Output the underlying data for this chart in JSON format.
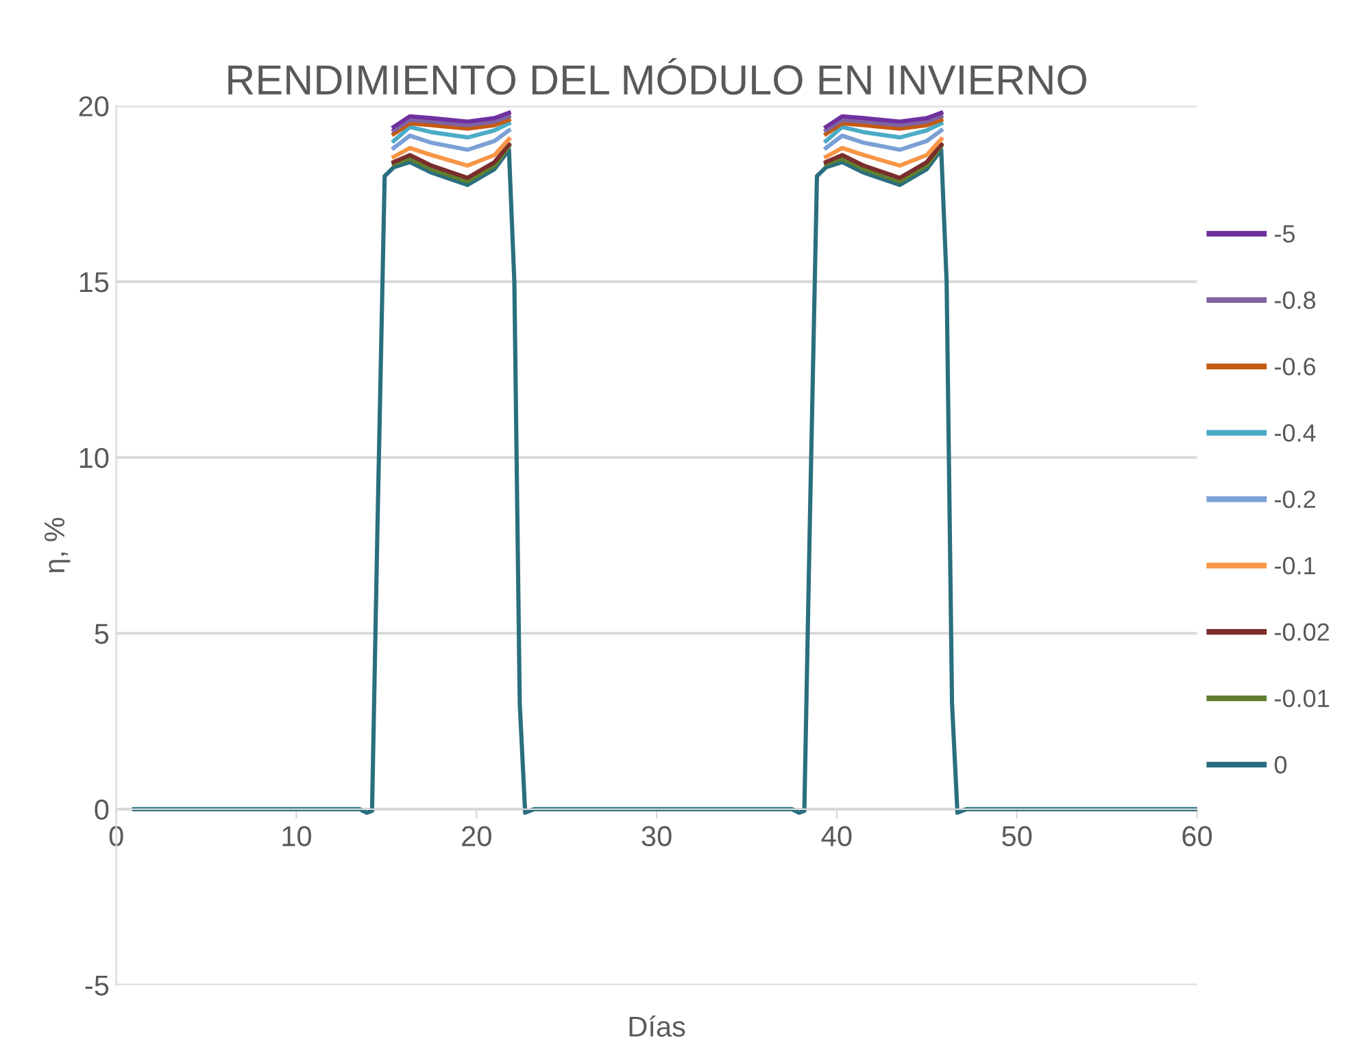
{
  "chart_data": {
    "type": "line",
    "title": "RENDIMIENTO DEL MÓDULO EN INVIERNO",
    "xlabel": "Días",
    "ylabel": "η, %",
    "x": [
      1,
      5,
      10,
      13,
      13.5,
      13.9,
      14.2,
      14.5,
      14.9,
      15.4,
      16.3,
      17.5,
      19.5,
      21,
      21.8,
      22.1,
      22.4,
      22.7,
      23.2,
      30,
      37,
      37.5,
      37.9,
      38.2,
      38.5,
      38.9,
      39.4,
      40.3,
      41.5,
      43.5,
      45,
      45.8,
      46.1,
      46.4,
      46.7,
      47.2,
      50,
      55,
      60
    ],
    "xlim": [
      0,
      60
    ],
    "xticks": [
      0,
      10,
      20,
      30,
      40,
      50,
      60
    ],
    "ylim": [
      -5,
      20
    ],
    "yticks": [
      -5,
      0,
      5,
      10,
      15,
      20
    ],
    "grid": "y",
    "legend": "right",
    "marker": "none",
    "line_style": "solid",
    "series": [
      {
        "name": "-5",
        "color": "#7030a0",
        "values": [
          null,
          null,
          null,
          null,
          null,
          null,
          null,
          null,
          null,
          19.4,
          19.7,
          19.65,
          19.55,
          19.65,
          19.8,
          null,
          null,
          null,
          null,
          null,
          null,
          null,
          null,
          null,
          null,
          null,
          19.4,
          19.7,
          19.65,
          19.55,
          19.65,
          19.8,
          null,
          null,
          null,
          null,
          null,
          null,
          null
        ]
      },
      {
        "name": "-0.8",
        "color": "#8064a2",
        "values": [
          null,
          null,
          null,
          null,
          null,
          null,
          null,
          null,
          null,
          19.3,
          19.6,
          19.55,
          19.45,
          19.55,
          19.7,
          null,
          null,
          null,
          null,
          null,
          null,
          null,
          null,
          null,
          null,
          null,
          19.3,
          19.6,
          19.55,
          19.45,
          19.55,
          19.7,
          null,
          null,
          null,
          null,
          null,
          null,
          null
        ]
      },
      {
        "name": "-0.6",
        "color": "#c55a11",
        "values": [
          null,
          null,
          null,
          null,
          null,
          null,
          null,
          null,
          null,
          19.2,
          19.5,
          19.45,
          19.35,
          19.45,
          19.6,
          null,
          null,
          null,
          null,
          null,
          null,
          null,
          null,
          null,
          null,
          null,
          19.2,
          19.5,
          19.45,
          19.35,
          19.45,
          19.6,
          null,
          null,
          null,
          null,
          null,
          null,
          null
        ]
      },
      {
        "name": "-0.4",
        "color": "#4bacc6",
        "values": [
          null,
          null,
          null,
          null,
          null,
          null,
          null,
          null,
          null,
          19.0,
          19.4,
          19.25,
          19.1,
          19.3,
          19.5,
          null,
          null,
          null,
          null,
          null,
          null,
          null,
          null,
          null,
          null,
          null,
          19.0,
          19.4,
          19.25,
          19.1,
          19.3,
          19.5,
          null,
          null,
          null,
          null,
          null,
          null,
          null
        ]
      },
      {
        "name": "-0.2",
        "color": "#7ba0d6",
        "values": [
          null,
          null,
          null,
          null,
          null,
          null,
          null,
          null,
          null,
          18.8,
          19.15,
          18.95,
          18.75,
          19.0,
          19.3,
          null,
          null,
          null,
          null,
          null,
          null,
          null,
          null,
          null,
          null,
          null,
          18.8,
          19.15,
          18.95,
          18.75,
          19.0,
          19.3,
          null,
          null,
          null,
          null,
          null,
          null,
          null
        ]
      },
      {
        "name": "-0.1",
        "color": "#f79646",
        "values": [
          null,
          null,
          null,
          null,
          null,
          null,
          null,
          null,
          null,
          18.55,
          18.8,
          18.6,
          18.3,
          18.6,
          19.05,
          null,
          null,
          null,
          null,
          null,
          null,
          null,
          null,
          null,
          null,
          null,
          18.55,
          18.8,
          18.6,
          18.3,
          18.6,
          19.05,
          null,
          null,
          null,
          null,
          null,
          null,
          null
        ]
      },
      {
        "name": "-0.02",
        "color": "#7b2c2c",
        "values": [
          null,
          null,
          null,
          null,
          null,
          null,
          null,
          null,
          null,
          18.4,
          18.6,
          18.3,
          17.95,
          18.4,
          18.9,
          null,
          null,
          null,
          null,
          null,
          null,
          null,
          null,
          null,
          null,
          null,
          18.4,
          18.6,
          18.3,
          17.95,
          18.4,
          18.9,
          null,
          null,
          null,
          null,
          null,
          null,
          null
        ]
      },
      {
        "name": "-0.01",
        "color": "#5f7f2f",
        "values": [
          null,
          null,
          null,
          null,
          null,
          null,
          null,
          null,
          null,
          18.35,
          18.5,
          18.2,
          17.85,
          18.3,
          18.85,
          null,
          null,
          null,
          null,
          null,
          null,
          null,
          null,
          null,
          null,
          null,
          18.35,
          18.5,
          18.2,
          17.85,
          18.3,
          18.85,
          null,
          null,
          null,
          null,
          null,
          null,
          null
        ]
      },
      {
        "name": "0",
        "color": "#2a6f7f",
        "values": [
          0,
          0,
          0,
          0,
          0,
          -0.1,
          -0.05,
          8,
          18.0,
          18.25,
          18.4,
          18.1,
          17.75,
          18.2,
          18.75,
          15,
          3,
          -0.1,
          0,
          0,
          0,
          0,
          -0.1,
          -0.05,
          8,
          18.0,
          18.25,
          18.4,
          18.1,
          17.75,
          18.2,
          18.75,
          15,
          3,
          -0.1,
          0,
          0,
          0,
          0
        ]
      }
    ]
  }
}
